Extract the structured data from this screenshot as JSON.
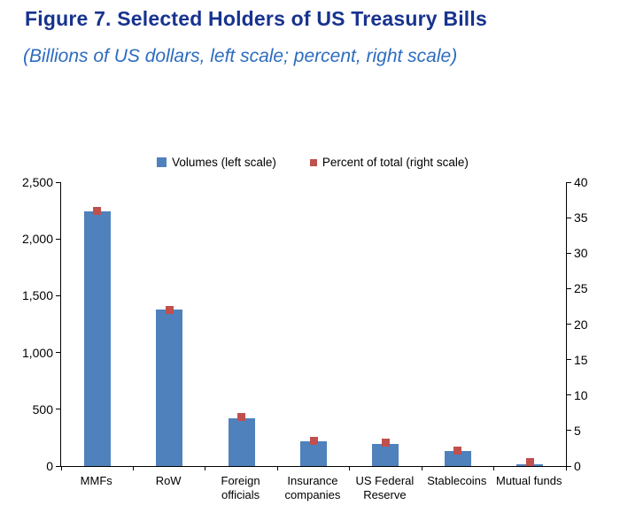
{
  "title": "Figure 7. Selected Holders of US Treasury Bills",
  "subtitle": "(Billions of US dollars, left scale; percent, right scale)",
  "colors": {
    "bar": "#4f81bd",
    "marker": "#c0504d",
    "title": "#17338f",
    "subtitle": "#2d6cc0"
  },
  "legend": [
    {
      "label": "Volumes (left scale)",
      "color": "#4f81bd",
      "type": "bar"
    },
    {
      "label": "Percent of total (right scale)",
      "color": "#c0504d",
      "type": "marker"
    }
  ],
  "chart_data": {
    "type": "bar",
    "title": "Figure 7. Selected Holders of US Treasury Bills",
    "subtitle": "(Billions of US dollars, left scale; percent, right scale)",
    "categories": [
      "MMFs",
      "RoW",
      "Foreign officials",
      "Insurance companies",
      "US Federal Reserve",
      "Stablecoins",
      "Mutual funds"
    ],
    "series": [
      {
        "name": "Volumes (left scale)",
        "type": "bar",
        "axis": "left",
        "color": "#4f81bd",
        "values": [
          2240,
          1380,
          420,
          215,
          195,
          135,
          15
        ]
      },
      {
        "name": "Percent of total (right scale)",
        "type": "point",
        "axis": "right",
        "color": "#c0504d",
        "values": [
          36,
          22,
          6.9,
          3.6,
          3.3,
          2.2,
          0.5
        ]
      }
    ],
    "left_axis": {
      "min": 0,
      "max": 2500,
      "step": 500,
      "tick_labels": [
        "0",
        "500",
        "1,000",
        "1,500",
        "2,000",
        "2,500"
      ]
    },
    "right_axis": {
      "min": 0,
      "max": 40,
      "step": 5,
      "tick_labels": [
        "0",
        "5",
        "10",
        "15",
        "20",
        "25",
        "30",
        "35",
        "40"
      ]
    },
    "grid": false,
    "legend_position": "top"
  }
}
